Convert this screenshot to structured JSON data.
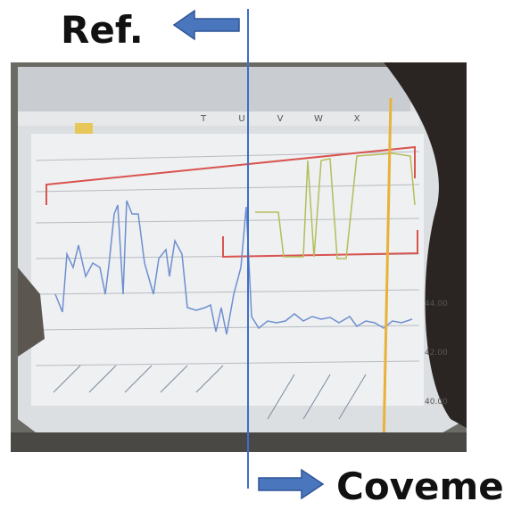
{
  "annotations": {
    "left": "Ref.",
    "right": "Coveme"
  },
  "screen": {
    "columns": [
      "T",
      "U",
      "V",
      "W",
      "X"
    ],
    "right_axis": [
      "44.00",
      "42.00",
      "40.00"
    ]
  }
}
